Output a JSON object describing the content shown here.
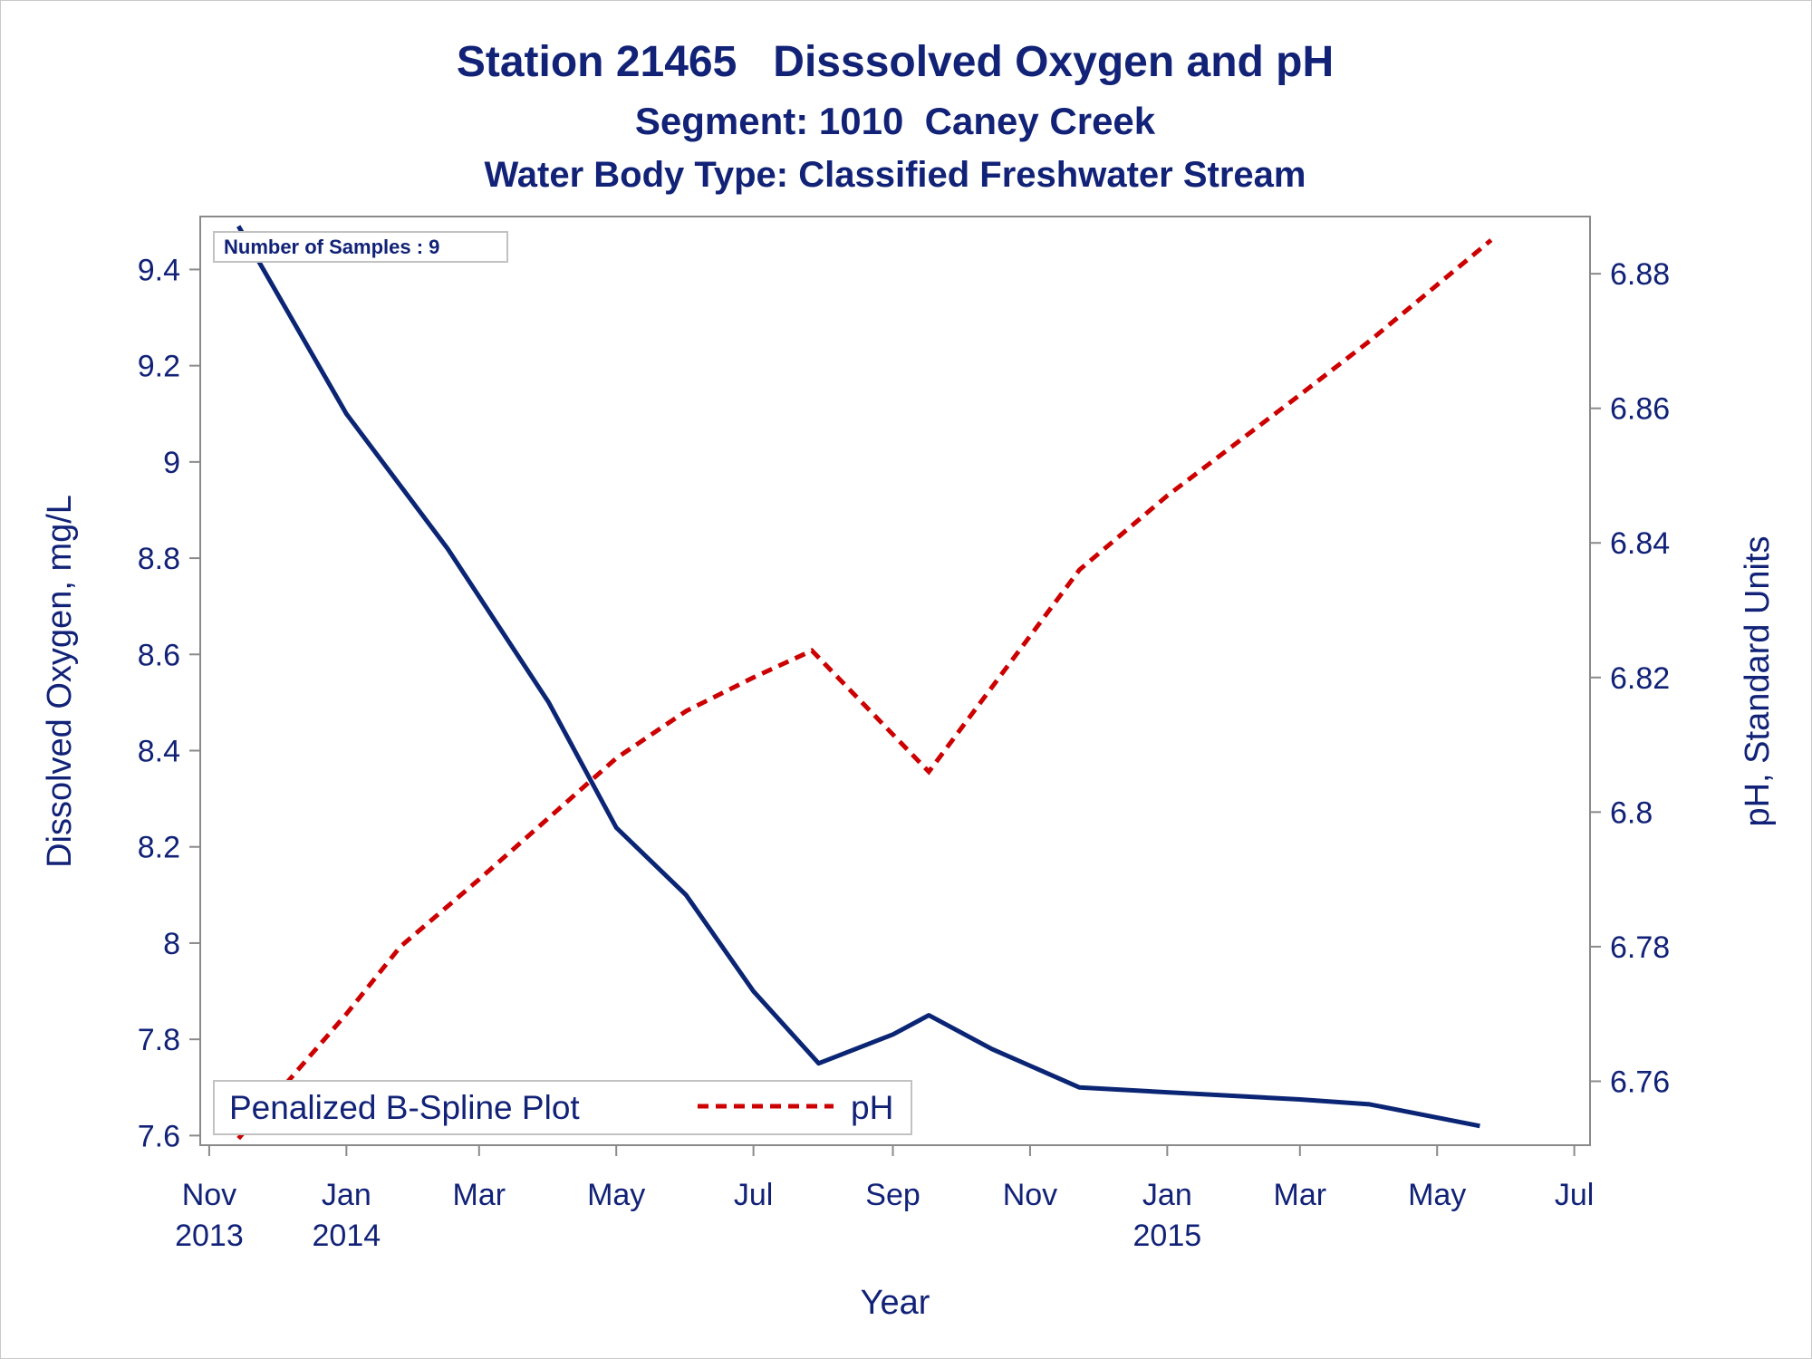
{
  "titles": {
    "line1": "Station 21465   Disssolved Oxygen and pH",
    "line2": "Segment: 1010  Caney Creek",
    "line3": "Water Body Type: Classified Freshwater Stream"
  },
  "inset": {
    "text": "Number of Samples : 9"
  },
  "legend": {
    "series1": "Penalized B-Spline Plot",
    "series2": "pH"
  },
  "colors": {
    "text": "#112277",
    "do_line": "#0b2575",
    "ph_line": "#cc0000",
    "frame": "#8a8a8a"
  },
  "chart_data": {
    "type": "line",
    "title": "Station 21465   Disssolved Oxygen and pH",
    "xlabel": "Year",
    "ylabel": "Dissolved Oxygen, mg/L",
    "y2label": "pH, Standard Units",
    "x_ticks": [
      {
        "date": "2013-11-01",
        "line1": "Nov",
        "line2": "2013"
      },
      {
        "date": "2014-01-01",
        "line1": "Jan",
        "line2": "2014"
      },
      {
        "date": "2014-03-01",
        "line1": "Mar",
        "line2": ""
      },
      {
        "date": "2014-05-01",
        "line1": "May",
        "line2": ""
      },
      {
        "date": "2014-07-01",
        "line1": "Jul",
        "line2": ""
      },
      {
        "date": "2014-09-01",
        "line1": "Sep",
        "line2": ""
      },
      {
        "date": "2014-11-01",
        "line1": "Nov",
        "line2": ""
      },
      {
        "date": "2015-01-01",
        "line1": "Jan",
        "line2": "2015"
      },
      {
        "date": "2015-03-01",
        "line1": "Mar",
        "line2": ""
      },
      {
        "date": "2015-05-01",
        "line1": "May",
        "line2": ""
      },
      {
        "date": "2015-07-01",
        "line1": "Jul",
        "line2": ""
      }
    ],
    "xlim": [
      "2013-10-28",
      "2015-07-08"
    ],
    "ylim": [
      7.58,
      9.51
    ],
    "y_ticks": [
      7.6,
      7.8,
      8,
      8.2,
      8.4,
      8.6,
      8.8,
      9,
      9.2,
      9.4
    ],
    "y2lim": [
      6.7505,
      6.8885
    ],
    "y2_ticks": [
      6.76,
      6.78,
      6.8,
      6.82,
      6.84,
      6.86,
      6.88
    ],
    "series": [
      {
        "name": "Penalized B-Spline Plot",
        "axis": "left",
        "style": "solid",
        "points": [
          {
            "x": "2013-11-14",
            "y": 9.49
          },
          {
            "x": "2014-01-01",
            "y": 9.1
          },
          {
            "x": "2014-02-15",
            "y": 8.82
          },
          {
            "x": "2014-04-01",
            "y": 8.5
          },
          {
            "x": "2014-05-01",
            "y": 8.24
          },
          {
            "x": "2014-06-01",
            "y": 8.1
          },
          {
            "x": "2014-07-01",
            "y": 7.9
          },
          {
            "x": "2014-07-30",
            "y": 7.75
          },
          {
            "x": "2014-09-01",
            "y": 7.81
          },
          {
            "x": "2014-09-17",
            "y": 7.85
          },
          {
            "x": "2014-10-15",
            "y": 7.78
          },
          {
            "x": "2014-11-23",
            "y": 7.7
          },
          {
            "x": "2015-01-01",
            "y": 7.69
          },
          {
            "x": "2015-03-01",
            "y": 7.675
          },
          {
            "x": "2015-04-01",
            "y": 7.665
          },
          {
            "x": "2015-05-20",
            "y": 7.62
          }
        ]
      },
      {
        "name": "pH",
        "axis": "right",
        "style": "dashed",
        "points": [
          {
            "x": "2013-11-14",
            "y": 6.7515
          },
          {
            "x": "2014-01-01",
            "y": 6.77
          },
          {
            "x": "2014-01-25",
            "y": 6.78
          },
          {
            "x": "2014-03-01",
            "y": 6.79
          },
          {
            "x": "2014-05-01",
            "y": 6.808
          },
          {
            "x": "2014-06-01",
            "y": 6.815
          },
          {
            "x": "2014-07-01",
            "y": 6.82
          },
          {
            "x": "2014-07-27",
            "y": 6.824
          },
          {
            "x": "2014-09-17",
            "y": 6.806
          },
          {
            "x": "2014-11-23",
            "y": 6.836
          },
          {
            "x": "2015-01-01",
            "y": 6.847
          },
          {
            "x": "2015-03-01",
            "y": 6.862
          },
          {
            "x": "2015-04-01",
            "y": 6.87
          },
          {
            "x": "2015-05-25",
            "y": 6.885
          }
        ]
      }
    ]
  }
}
